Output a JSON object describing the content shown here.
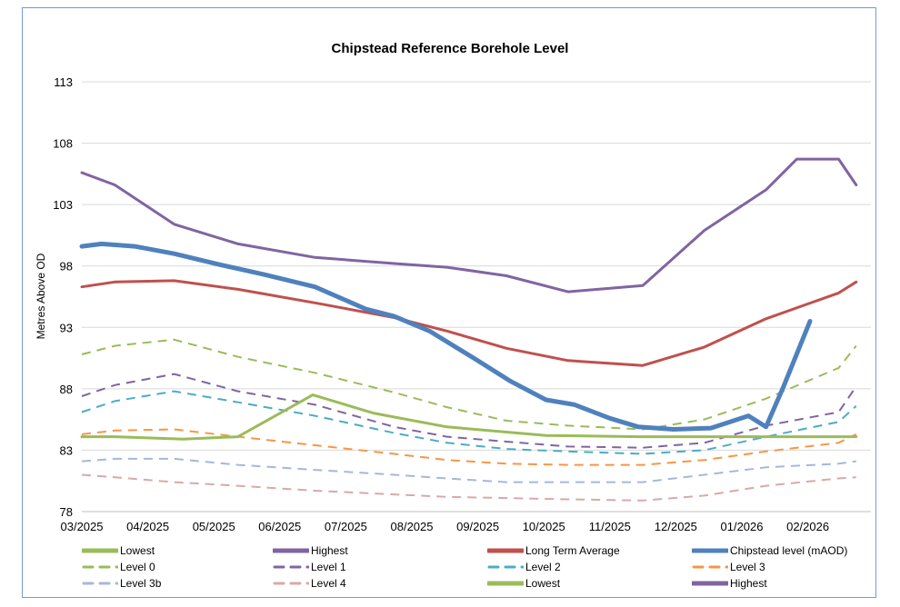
{
  "chart_data": {
    "type": "line",
    "title": "Chipstead Reference Borehole Level",
    "xlabel": "",
    "ylabel": "Metres Above OD",
    "ylim": [
      78,
      113
    ],
    "yticks": [
      "78",
      "83",
      "88",
      "93",
      "98",
      "103",
      "108",
      "113"
    ],
    "xticks": [
      "03/2025",
      "04/2025",
      "05/2025",
      "06/2025",
      "07/2025",
      "08/2025",
      "09/2025",
      "10/2025",
      "11/2025",
      "12/2025",
      "01/2026",
      "02/2026"
    ],
    "grid": "horizontal",
    "legend_position": "bottom",
    "series": [
      {
        "name": "Lowest",
        "color": "#9bbb59",
        "style": "solid",
        "width": 3,
        "x": [
          "2025-03-01",
          "2025-03-16",
          "2025-04-17",
          "2025-05-12",
          "2025-06-16",
          "2025-07-14",
          "2025-08-17",
          "2025-10-02",
          "2025-11-14",
          "2026-02-23"
        ],
        "y": [
          84.1,
          84.1,
          83.9,
          84.1,
          87.5,
          86.0,
          84.9,
          84.2,
          84.1,
          84.1
        ]
      },
      {
        "name": "Highest",
        "color": "#8064a2",
        "style": "solid",
        "width": 3,
        "x": [
          "2025-03-01",
          "2025-03-16",
          "2025-04-13",
          "2025-05-12",
          "2025-06-17",
          "2025-07-23",
          "2025-08-17",
          "2025-09-14",
          "2025-10-12",
          "2025-11-16",
          "2025-12-14",
          "2026-01-12",
          "2026-01-26",
          "2026-02-15",
          "2026-02-23"
        ],
        "y": [
          105.6,
          104.6,
          101.4,
          99.8,
          98.7,
          98.2,
          97.9,
          97.2,
          95.9,
          96.4,
          100.9,
          104.2,
          106.7,
          106.7,
          104.6
        ]
      },
      {
        "name": "Long Term Average",
        "color": "#c0504d",
        "style": "solid",
        "width": 3,
        "x": [
          "2025-03-01",
          "2025-03-16",
          "2025-04-13",
          "2025-05-12",
          "2025-06-17",
          "2025-07-23",
          "2025-08-17",
          "2025-09-14",
          "2025-10-12",
          "2025-11-16",
          "2025-12-14",
          "2026-01-12",
          "2026-02-15",
          "2026-02-23"
        ],
        "y": [
          96.3,
          96.7,
          96.8,
          96.1,
          95.0,
          93.8,
          92.7,
          91.3,
          90.3,
          89.9,
          91.4,
          93.7,
          95.8,
          96.7
        ]
      },
      {
        "name": "Chipstead level (mAOD)",
        "color": "#4f81bd",
        "style": "solid",
        "width": 5,
        "x": [
          "2025-03-01",
          "2025-03-10",
          "2025-03-25",
          "2025-04-13",
          "2025-05-04",
          "2025-05-24",
          "2025-06-17",
          "2025-07-10",
          "2025-07-23",
          "2025-08-09",
          "2025-08-30",
          "2025-09-16",
          "2025-10-02",
          "2025-10-15",
          "2025-11-01",
          "2025-11-14",
          "2025-11-30",
          "2025-12-17",
          "2026-01-04",
          "2026-01-12",
          "2026-01-20",
          "2026-02-02"
        ],
        "y": [
          99.6,
          99.8,
          99.6,
          99.0,
          98.1,
          97.3,
          96.3,
          94.5,
          93.9,
          92.7,
          90.4,
          88.6,
          87.1,
          86.7,
          85.6,
          84.9,
          84.7,
          84.8,
          85.8,
          84.9,
          88.2,
          93.5
        ]
      },
      {
        "name": "Level 0",
        "color": "#9bbb59",
        "style": "dashed",
        "width": 2,
        "x": "common",
        "y": [
          90.8,
          91.5,
          92.0,
          90.6,
          89.3,
          87.7,
          86.5,
          85.4,
          85.0,
          84.7,
          85.5,
          87.2,
          89.7,
          91.5
        ]
      },
      {
        "name": "Level 1",
        "color": "#8064a2",
        "style": "dashed",
        "width": 2,
        "x": "common",
        "y": [
          87.4,
          88.3,
          89.2,
          87.8,
          86.7,
          84.9,
          84.1,
          83.7,
          83.3,
          83.2,
          83.6,
          85.0,
          86.1,
          88.2
        ]
      },
      {
        "name": "Level 2",
        "color": "#4bacc6",
        "style": "dashed",
        "width": 2,
        "x": "common",
        "y": [
          86.1,
          87.0,
          87.8,
          86.9,
          85.8,
          84.4,
          83.6,
          83.1,
          82.9,
          82.7,
          83.0,
          84.1,
          85.3,
          86.6
        ]
      },
      {
        "name": "Level 3",
        "color": "#f79646",
        "style": "dashed",
        "width": 2,
        "x": "common",
        "y": [
          84.3,
          84.6,
          84.7,
          84.1,
          83.4,
          82.7,
          82.2,
          81.9,
          81.8,
          81.8,
          82.2,
          82.9,
          83.6,
          84.3
        ]
      },
      {
        "name": "Level 3b",
        "color": "#a5b8d9",
        "style": "dashed",
        "width": 2,
        "x": "common",
        "y": [
          82.1,
          82.3,
          82.3,
          81.8,
          81.4,
          81.0,
          80.7,
          80.4,
          80.4,
          80.4,
          81.0,
          81.6,
          81.9,
          82.1
        ]
      },
      {
        "name": "Level 4",
        "color": "#d9a9a8",
        "style": "dashed",
        "width": 2,
        "x": "common",
        "y": [
          81.0,
          80.8,
          80.4,
          80.1,
          79.7,
          79.4,
          79.2,
          79.1,
          79.0,
          78.9,
          79.3,
          80.1,
          80.7,
          80.8
        ]
      },
      {
        "name": "Lowest",
        "color": "#9bbb59",
        "style": "solid",
        "width": 3,
        "x": "ref:0",
        "y": "ref:0"
      },
      {
        "name": "Highest",
        "color": "#8064a2",
        "style": "solid",
        "width": 3,
        "x": "ref:1",
        "y": "ref:1"
      }
    ],
    "common_x": [
      "2025-03-01",
      "2025-03-16",
      "2025-04-13",
      "2025-05-12",
      "2025-06-17",
      "2025-07-23",
      "2025-08-17",
      "2025-09-14",
      "2025-10-12",
      "2025-11-16",
      "2025-12-14",
      "2026-01-12",
      "2026-02-15",
      "2026-02-23"
    ]
  }
}
